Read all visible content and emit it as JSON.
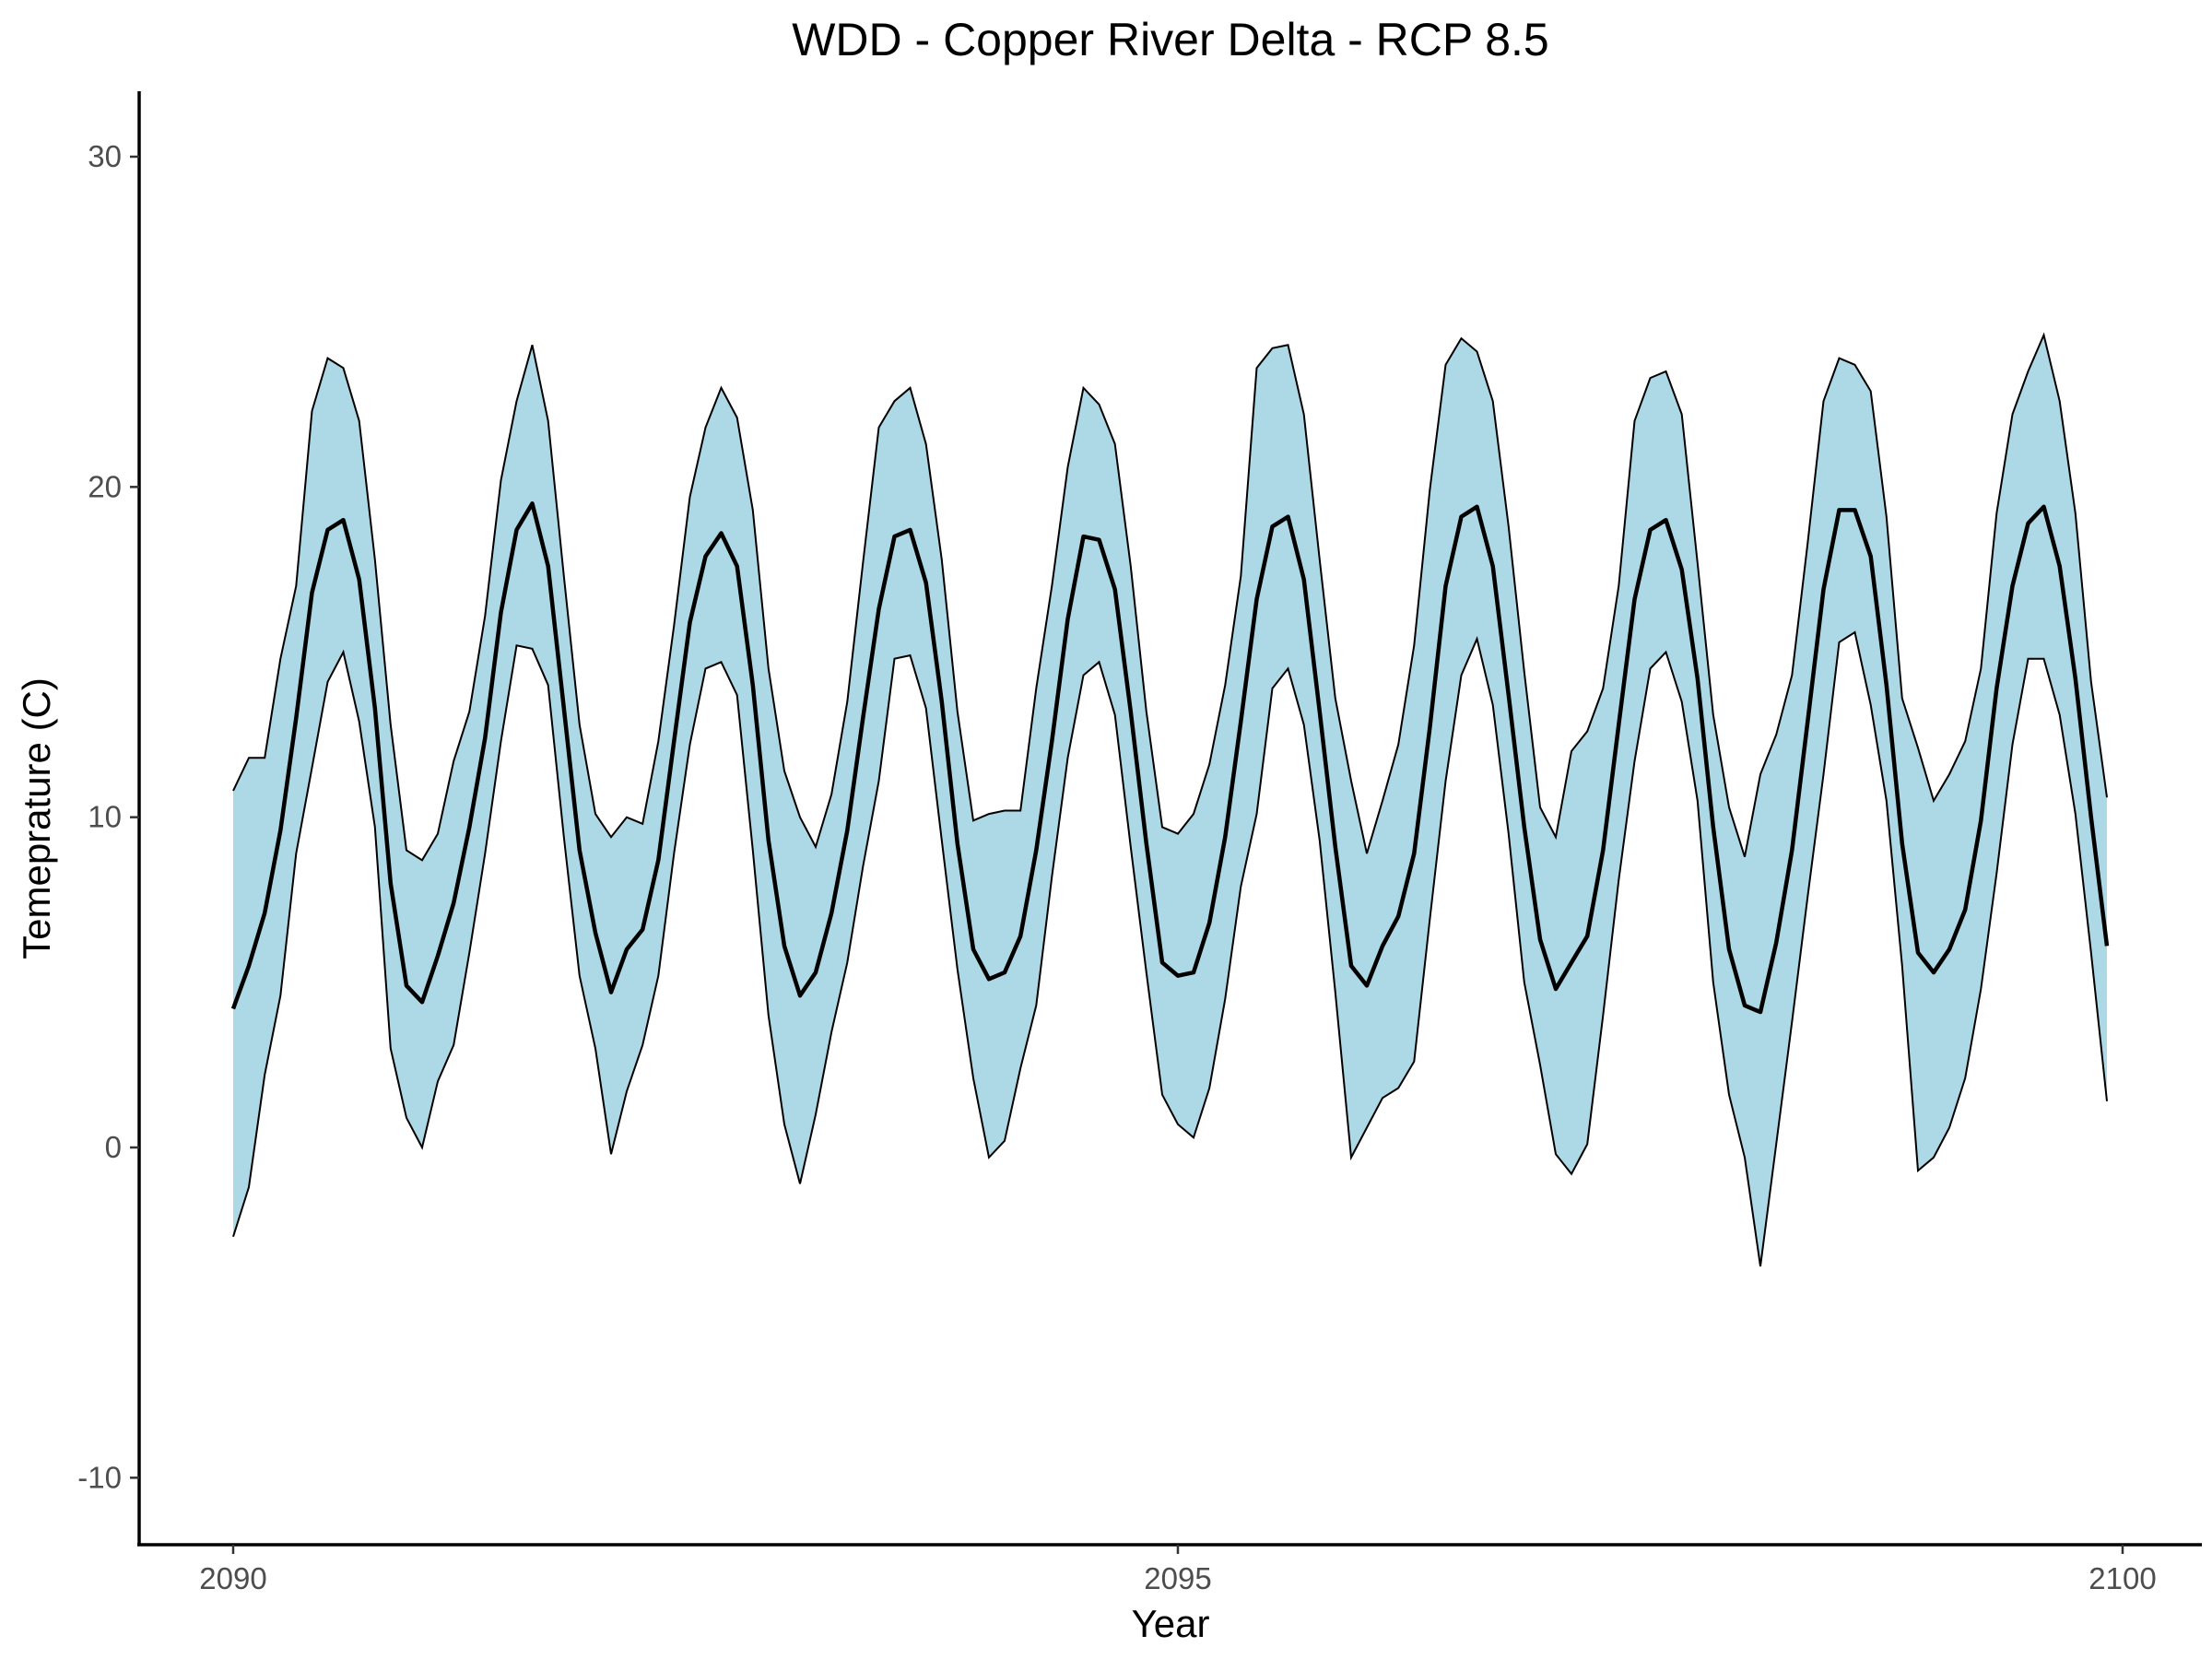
{
  "chart_data": {
    "type": "area",
    "title": "WDD - Copper River Delta - RCP 8.5",
    "xlabel": "Year",
    "ylabel": "Temeprature (C)",
    "xlim": [
      2089.5,
      2100.4
    ],
    "ylim": [
      -12,
      32
    ],
    "xticks": [
      2090,
      2095,
      2100
    ],
    "xtick_labels": [
      "2090",
      "2095",
      "2100"
    ],
    "yticks": [
      -10,
      0,
      10,
      20,
      30
    ],
    "ytick_labels": [
      "-10",
      "0",
      "10",
      "20",
      "30"
    ],
    "grid": false,
    "band_color": "#add8e6",
    "line_color": "#000000",
    "x": [
      2090.0,
      2090.083,
      2090.167,
      2090.25,
      2090.333,
      2090.417,
      2090.5,
      2090.583,
      2090.667,
      2090.75,
      2090.833,
      2090.917,
      2091.0,
      2091.083,
      2091.167,
      2091.25,
      2091.333,
      2091.417,
      2091.5,
      2091.583,
      2091.667,
      2091.75,
      2091.833,
      2091.917,
      2092.0,
      2092.083,
      2092.167,
      2092.25,
      2092.333,
      2092.417,
      2092.5,
      2092.583,
      2092.667,
      2092.75,
      2092.833,
      2092.917,
      2093.0,
      2093.083,
      2093.167,
      2093.25,
      2093.333,
      2093.417,
      2093.5,
      2093.583,
      2093.667,
      2093.75,
      2093.833,
      2093.917,
      2094.0,
      2094.083,
      2094.167,
      2094.25,
      2094.333,
      2094.417,
      2094.5,
      2094.583,
      2094.667,
      2094.75,
      2094.833,
      2094.917,
      2095.0,
      2095.083,
      2095.167,
      2095.25,
      2095.333,
      2095.417,
      2095.5,
      2095.583,
      2095.667,
      2095.75,
      2095.833,
      2095.917,
      2096.0,
      2096.083,
      2096.167,
      2096.25,
      2096.333,
      2096.417,
      2096.5,
      2096.583,
      2096.667,
      2096.75,
      2096.833,
      2096.917,
      2097.0,
      2097.083,
      2097.167,
      2097.25,
      2097.333,
      2097.417,
      2097.5,
      2097.583,
      2097.667,
      2097.75,
      2097.833,
      2097.917,
      2098.0,
      2098.083,
      2098.167,
      2098.25,
      2098.333,
      2098.417,
      2098.5,
      2098.583,
      2098.667,
      2098.75,
      2098.833,
      2098.917,
      2099.0,
      2099.083,
      2099.167,
      2099.25,
      2099.333,
      2099.417,
      2099.5,
      2099.583,
      2099.667,
      2099.75,
      2099.833,
      2099.917
    ],
    "series": [
      {
        "role": "upper",
        "values": [
          10.8,
          11.8,
          11.8,
          14.8,
          17.0,
          22.3,
          23.9,
          23.6,
          22.0,
          17.8,
          12.8,
          9.0,
          8.7,
          9.5,
          11.7,
          13.2,
          16.1,
          20.2,
          22.6,
          24.3,
          22.0,
          17.3,
          12.8,
          10.1,
          9.4,
          10.0,
          9.8,
          12.3,
          15.8,
          19.7,
          21.8,
          23.0,
          22.1,
          19.3,
          14.5,
          11.4,
          10.0,
          9.1,
          10.7,
          13.5,
          17.7,
          21.8,
          22.6,
          23.0,
          21.3,
          17.8,
          13.2,
          9.9,
          10.1,
          10.2,
          10.2,
          13.9,
          17.0,
          20.6,
          23.0,
          22.5,
          21.3,
          17.6,
          13.2,
          9.7,
          9.5,
          10.1,
          11.6,
          14.0,
          17.3,
          23.6,
          24.2,
          24.3,
          22.2,
          17.8,
          13.6,
          11.1,
          8.9,
          10.5,
          12.2,
          15.2,
          19.9,
          23.7,
          24.5,
          24.1,
          22.6,
          18.8,
          14.4,
          10.3,
          9.4,
          12.0,
          12.6,
          13.9,
          17.0,
          22.0,
          23.3,
          23.5,
          22.2,
          17.7,
          13.1,
          10.3,
          8.8,
          11.3,
          12.5,
          14.3,
          18.3,
          22.6,
          23.9,
          23.7,
          22.9,
          19.1,
          13.6,
          12.1,
          10.5,
          11.3,
          12.3,
          14.5,
          19.2,
          22.2,
          23.5,
          24.6,
          22.6,
          19.2,
          14.1,
          10.6
        ]
      },
      {
        "role": "mean",
        "values": [
          4.2,
          5.5,
          7.1,
          9.6,
          13.0,
          16.8,
          18.7,
          19.0,
          17.2,
          13.3,
          8.0,
          4.9,
          4.4,
          5.8,
          7.4,
          9.7,
          12.4,
          16.2,
          18.7,
          19.5,
          17.6,
          13.3,
          9.0,
          6.5,
          4.7,
          6.0,
          6.6,
          8.7,
          12.3,
          15.9,
          17.9,
          18.6,
          17.6,
          14.0,
          9.3,
          6.1,
          4.6,
          5.3,
          7.1,
          9.6,
          13.0,
          16.3,
          18.5,
          18.7,
          17.1,
          13.5,
          9.2,
          6.0,
          5.1,
          5.3,
          6.4,
          9.0,
          12.3,
          16.0,
          18.5,
          18.4,
          16.9,
          13.2,
          9.2,
          5.6,
          5.2,
          5.3,
          6.8,
          9.4,
          12.9,
          16.6,
          18.8,
          19.1,
          17.2,
          13.2,
          9.1,
          5.5,
          4.9,
          6.1,
          7.0,
          8.9,
          12.7,
          17.0,
          19.1,
          19.4,
          17.6,
          13.7,
          9.7,
          6.3,
          4.8,
          5.6,
          6.4,
          9.0,
          12.8,
          16.6,
          18.7,
          19.0,
          17.5,
          14.2,
          9.7,
          6.0,
          4.3,
          4.1,
          6.2,
          9.0,
          12.9,
          16.9,
          19.3,
          19.3,
          17.9,
          14.0,
          9.2,
          5.9,
          5.3,
          6.0,
          7.2,
          9.9,
          13.9,
          17.0,
          18.9,
          19.4,
          17.6,
          14.2,
          10.0,
          6.1
        ]
      },
      {
        "role": "lower",
        "values": [
          -2.7,
          -1.2,
          2.2,
          4.6,
          8.9,
          11.5,
          14.1,
          15.0,
          12.9,
          9.7,
          3.0,
          0.9,
          0.0,
          2.0,
          3.1,
          5.9,
          8.9,
          12.3,
          15.2,
          15.1,
          14.0,
          9.4,
          5.2,
          3.0,
          -0.2,
          1.7,
          3.1,
          5.2,
          8.9,
          12.2,
          14.5,
          14.7,
          13.7,
          9.0,
          4.0,
          0.7,
          -1.1,
          1.0,
          3.5,
          5.6,
          8.5,
          11.1,
          14.8,
          14.9,
          13.3,
          9.3,
          5.4,
          2.1,
          -0.3,
          0.2,
          2.4,
          4.3,
          8.2,
          11.8,
          14.3,
          14.7,
          13.1,
          9.1,
          5.3,
          1.6,
          0.7,
          0.3,
          1.8,
          4.5,
          7.9,
          10.1,
          13.9,
          14.5,
          12.8,
          9.3,
          4.7,
          -0.3,
          0.6,
          1.5,
          1.8,
          2.6,
          6.9,
          11.1,
          14.3,
          15.4,
          13.4,
          9.5,
          5.0,
          2.5,
          -0.2,
          -0.8,
          0.1,
          4.0,
          8.1,
          11.7,
          14.5,
          15.0,
          13.5,
          10.5,
          5.0,
          1.6,
          -0.3,
          -3.6,
          0.1,
          3.8,
          7.6,
          11.3,
          15.3,
          15.6,
          13.4,
          10.5,
          5.5,
          -0.7,
          -0.3,
          0.6,
          2.1,
          4.8,
          8.3,
          12.2,
          14.8,
          14.8,
          13.1,
          10.1,
          5.9,
          1.4
        ]
      }
    ]
  }
}
